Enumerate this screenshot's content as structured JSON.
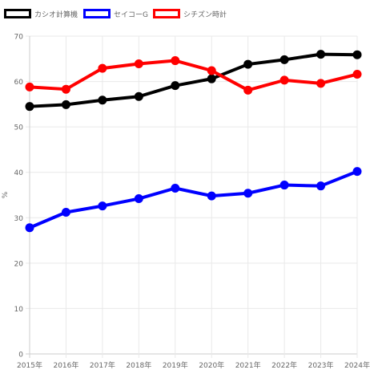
{
  "chart_data": {
    "type": "line",
    "title": "",
    "xlabel": "",
    "ylabel": "%",
    "ylim": [
      0,
      70
    ],
    "yticks": [
      0,
      10,
      20,
      30,
      40,
      50,
      60,
      70
    ],
    "grid": true,
    "legend_position": "top-left",
    "categories": [
      "2015年",
      "2016年",
      "2017年",
      "2018年",
      "2019年",
      "2020年",
      "2021年",
      "2022年",
      "2023年",
      "2024年"
    ],
    "series": [
      {
        "name": "カシオ計算機",
        "color": "#000000",
        "values": [
          54.5,
          54.9,
          55.9,
          56.7,
          59.1,
          60.6,
          63.8,
          64.8,
          66.0,
          65.9
        ]
      },
      {
        "name": "セイコーG",
        "color": "#0000ff",
        "values": [
          27.8,
          31.2,
          32.6,
          34.2,
          36.5,
          34.8,
          35.4,
          37.2,
          37.0,
          40.2
        ]
      },
      {
        "name": "シチズン時計",
        "color": "#ff0000",
        "values": [
          58.8,
          58.3,
          62.9,
          63.9,
          64.6,
          62.4,
          58.1,
          60.3,
          59.6,
          61.6
        ]
      }
    ]
  }
}
